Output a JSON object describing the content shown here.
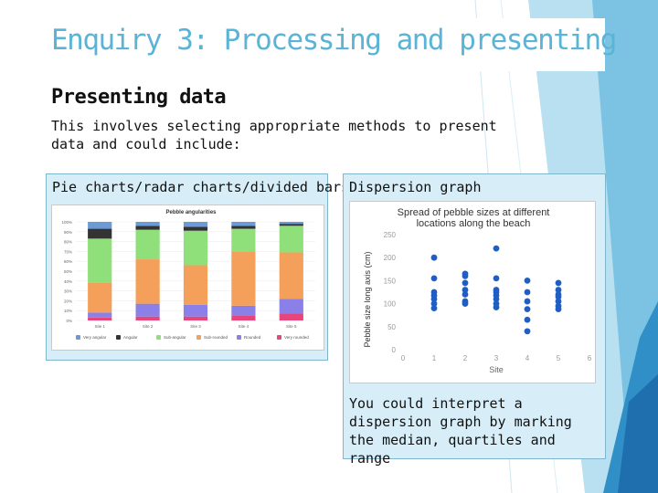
{
  "slide": {
    "title": "Enquiry 3: Processing and presenting",
    "heading": "Presenting data",
    "intro": "This involves selecting appropriate methods to present data and could include:"
  },
  "left_box": {
    "label": "Pie charts/radar charts/divided bars"
  },
  "right_box": {
    "label": "Dispersion graph",
    "caption": "You could interpret a dispersion graph by marking the median, quartiles and range"
  },
  "colors": {
    "title": "#5ab4d6",
    "box_fill": "#d7eef8",
    "very_angular": "#6b9bd6",
    "angular": "#333333",
    "sub_angular": "#8fe07a",
    "sub_rounded": "#f5a05a",
    "rounded": "#8b7fe8",
    "very_rounded": "#e8457a",
    "dots": "#1f5fc4"
  },
  "chart_data": [
    {
      "type": "bar",
      "stacked": true,
      "title": "Pebble angularities",
      "categories": [
        "Site 1",
        "Site 2",
        "Site 3",
        "Site 4",
        "Site 5"
      ],
      "y_ticks": [
        "0%",
        "10%",
        "20%",
        "30%",
        "40%",
        "50%",
        "60%",
        "70%",
        "80%",
        "90%",
        "100%"
      ],
      "ylim": [
        0,
        100
      ],
      "legend_position": "bottom",
      "series": [
        {
          "name": "Very rounded",
          "color": "#e8457a",
          "values": [
            3,
            4,
            4,
            5,
            7
          ]
        },
        {
          "name": "Rounded",
          "color": "#8b7fe8",
          "values": [
            5,
            13,
            12,
            10,
            15
          ]
        },
        {
          "name": "Sub-rounded",
          "color": "#f5a05a",
          "values": [
            30,
            45,
            40,
            55,
            47
          ]
        },
        {
          "name": "Sub-angular",
          "color": "#8fe07a",
          "values": [
            45,
            30,
            35,
            23,
            27
          ]
        },
        {
          "name": "Angular",
          "color": "#333333",
          "values": [
            10,
            4,
            4,
            3,
            2
          ]
        },
        {
          "name": "Very angular",
          "color": "#6b9bd6",
          "values": [
            7,
            4,
            5,
            4,
            2
          ]
        }
      ]
    },
    {
      "type": "scatter",
      "title": "Spread of pebble sizes at different locations along the beach",
      "xlabel": "Site",
      "ylabel": "Pebble size long axis (cm)",
      "xlim": [
        0,
        6
      ],
      "ylim": [
        0,
        250
      ],
      "x_ticks": [
        "0",
        "1",
        "2",
        "3",
        "4",
        "5",
        "6"
      ],
      "y_ticks": [
        "0",
        "50",
        "100",
        "150",
        "200",
        "250"
      ],
      "points": [
        {
          "x": 1,
          "y": 200
        },
        {
          "x": 1,
          "y": 155
        },
        {
          "x": 1,
          "y": 125
        },
        {
          "x": 1,
          "y": 118
        },
        {
          "x": 1,
          "y": 110
        },
        {
          "x": 1,
          "y": 100
        },
        {
          "x": 1,
          "y": 90
        },
        {
          "x": 2,
          "y": 165
        },
        {
          "x": 2,
          "y": 160
        },
        {
          "x": 2,
          "y": 145
        },
        {
          "x": 2,
          "y": 130
        },
        {
          "x": 2,
          "y": 120
        },
        {
          "x": 2,
          "y": 105
        },
        {
          "x": 2,
          "y": 100
        },
        {
          "x": 3,
          "y": 220
        },
        {
          "x": 3,
          "y": 155
        },
        {
          "x": 3,
          "y": 130
        },
        {
          "x": 3,
          "y": 125
        },
        {
          "x": 3,
          "y": 118
        },
        {
          "x": 3,
          "y": 110
        },
        {
          "x": 3,
          "y": 100
        },
        {
          "x": 3,
          "y": 92
        },
        {
          "x": 4,
          "y": 150
        },
        {
          "x": 4,
          "y": 125
        },
        {
          "x": 4,
          "y": 105
        },
        {
          "x": 4,
          "y": 88
        },
        {
          "x": 4,
          "y": 65
        },
        {
          "x": 4,
          "y": 40
        },
        {
          "x": 5,
          "y": 145
        },
        {
          "x": 5,
          "y": 130
        },
        {
          "x": 5,
          "y": 120
        },
        {
          "x": 5,
          "y": 115
        },
        {
          "x": 5,
          "y": 105
        },
        {
          "x": 5,
          "y": 95
        },
        {
          "x": 5,
          "y": 88
        }
      ]
    }
  ]
}
